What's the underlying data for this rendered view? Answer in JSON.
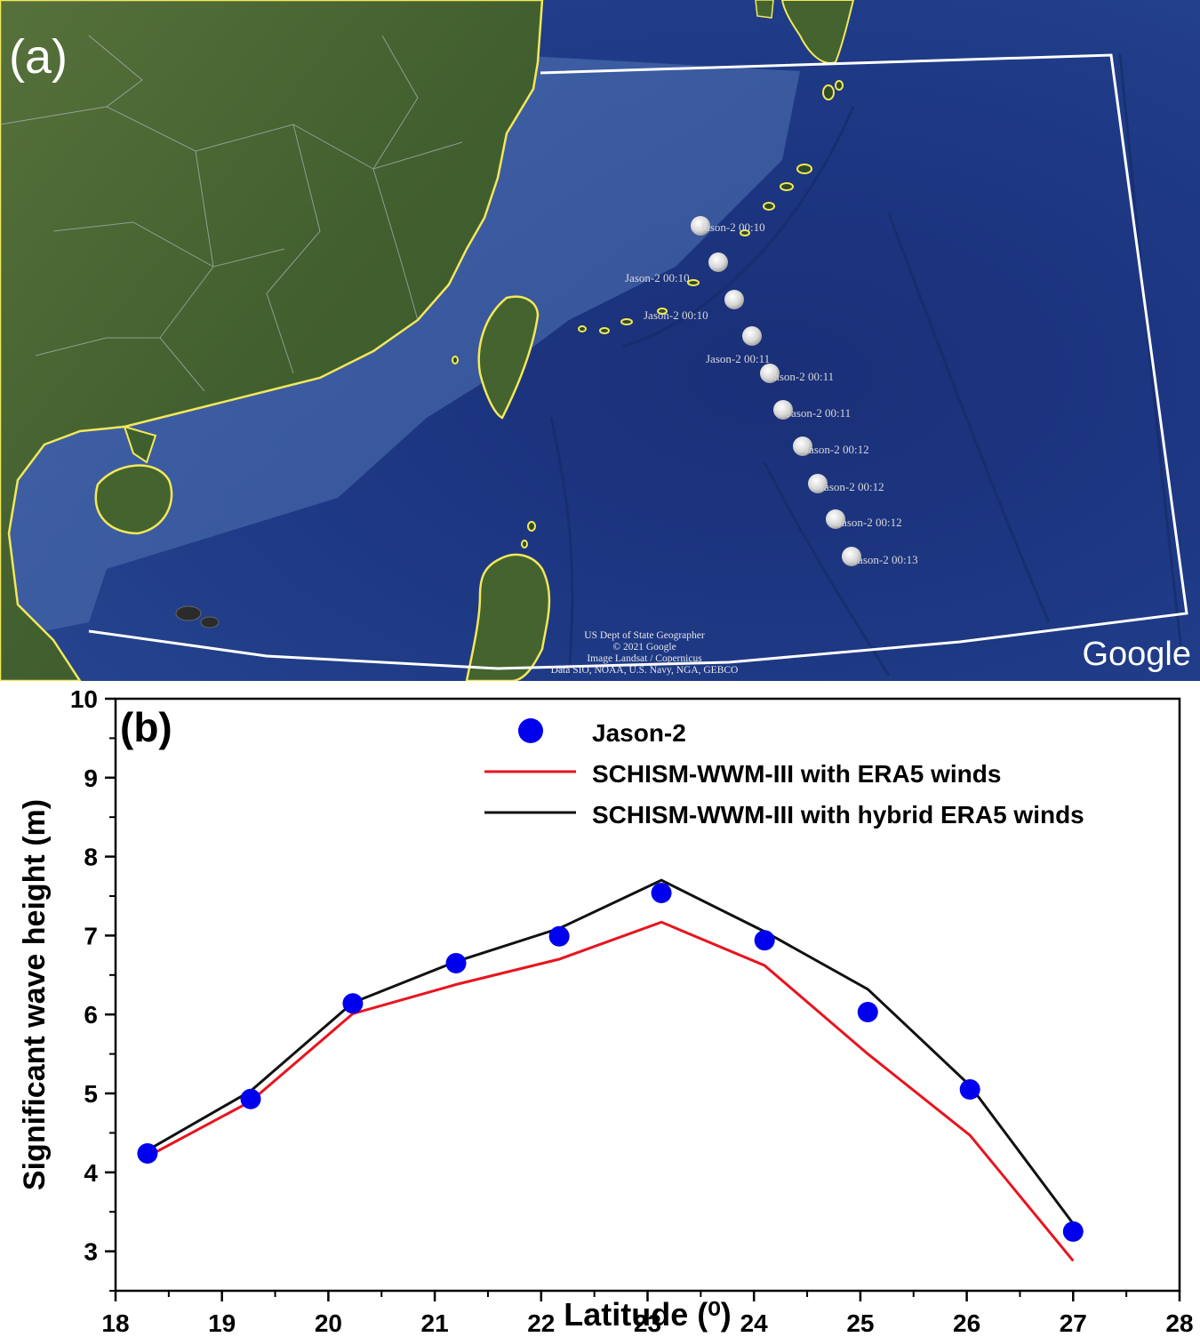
{
  "map": {
    "panel_label": "(a)",
    "brand": "Google",
    "attribution": [
      "US Dept of State Geographer",
      "© 2021 Google",
      "Image Landsat / Copernicus",
      "Data SIO, NOAA, U.S. Navy, NGA, GEBCO"
    ],
    "track_points": [
      {
        "label": "Jason-2 00:10"
      },
      {
        "label": "Jason-2 00:10"
      },
      {
        "label": "Jason-2 00:10"
      },
      {
        "label": "Jason-2 00:11"
      },
      {
        "label": "Jason-2 00:11"
      },
      {
        "label": "Jason-2 00:11"
      },
      {
        "label": "Jason-2 00:12"
      },
      {
        "label": "Jason-2 00:12"
      },
      {
        "label": "Jason-2 00:12"
      },
      {
        "label": "Jason-2 00:13"
      }
    ],
    "colors": {
      "ocean": "#1e3a8a",
      "land": "#3f5f2e",
      "coastline": "#f2e85a",
      "domain_box": "#ffffff"
    }
  },
  "chart_data": {
    "type": "line",
    "panel_label": "(b)",
    "xlabel": "Latitude (⁰)",
    "ylabel": "Significant wave height (m)",
    "xlim": [
      18,
      28
    ],
    "ylim": [
      2.5,
      10
    ],
    "xticks": [
      "18",
      "19",
      "20",
      "21",
      "22",
      "23",
      "24",
      "25",
      "26",
      "27",
      "28"
    ],
    "yticks": [
      "3",
      "4",
      "5",
      "6",
      "7",
      "8",
      "9",
      "10"
    ],
    "legend_position": "top-right",
    "series": [
      {
        "name": "Jason-2",
        "kind": "scatter",
        "color": "#0000ee",
        "x": [
          18.3,
          19.27,
          20.23,
          21.2,
          22.17,
          23.13,
          24.1,
          25.07,
          26.03,
          27.0
        ],
        "y": [
          4.24,
          4.93,
          6.14,
          6.65,
          6.99,
          7.54,
          6.94,
          6.03,
          5.05,
          3.25
        ]
      },
      {
        "name": "SCHISM-WWM-III with ERA5 winds",
        "kind": "line",
        "color": "#e8141e",
        "x": [
          18.3,
          19.27,
          20.23,
          21.2,
          22.17,
          23.13,
          24.1,
          25.07,
          26.03,
          27.0
        ],
        "y": [
          4.2,
          4.9,
          6.01,
          6.38,
          6.7,
          7.17,
          6.62,
          5.5,
          4.47,
          2.88
        ]
      },
      {
        "name": "SCHISM-WWM-III with hybrid ERA5 winds",
        "kind": "line",
        "color": "#111111",
        "x": [
          18.3,
          19.27,
          20.23,
          21.2,
          22.17,
          23.13,
          24.1,
          25.07,
          26.03,
          27.0
        ],
        "y": [
          4.28,
          5.03,
          6.15,
          6.67,
          7.09,
          7.7,
          7.05,
          6.32,
          5.1,
          3.35
        ]
      }
    ]
  }
}
